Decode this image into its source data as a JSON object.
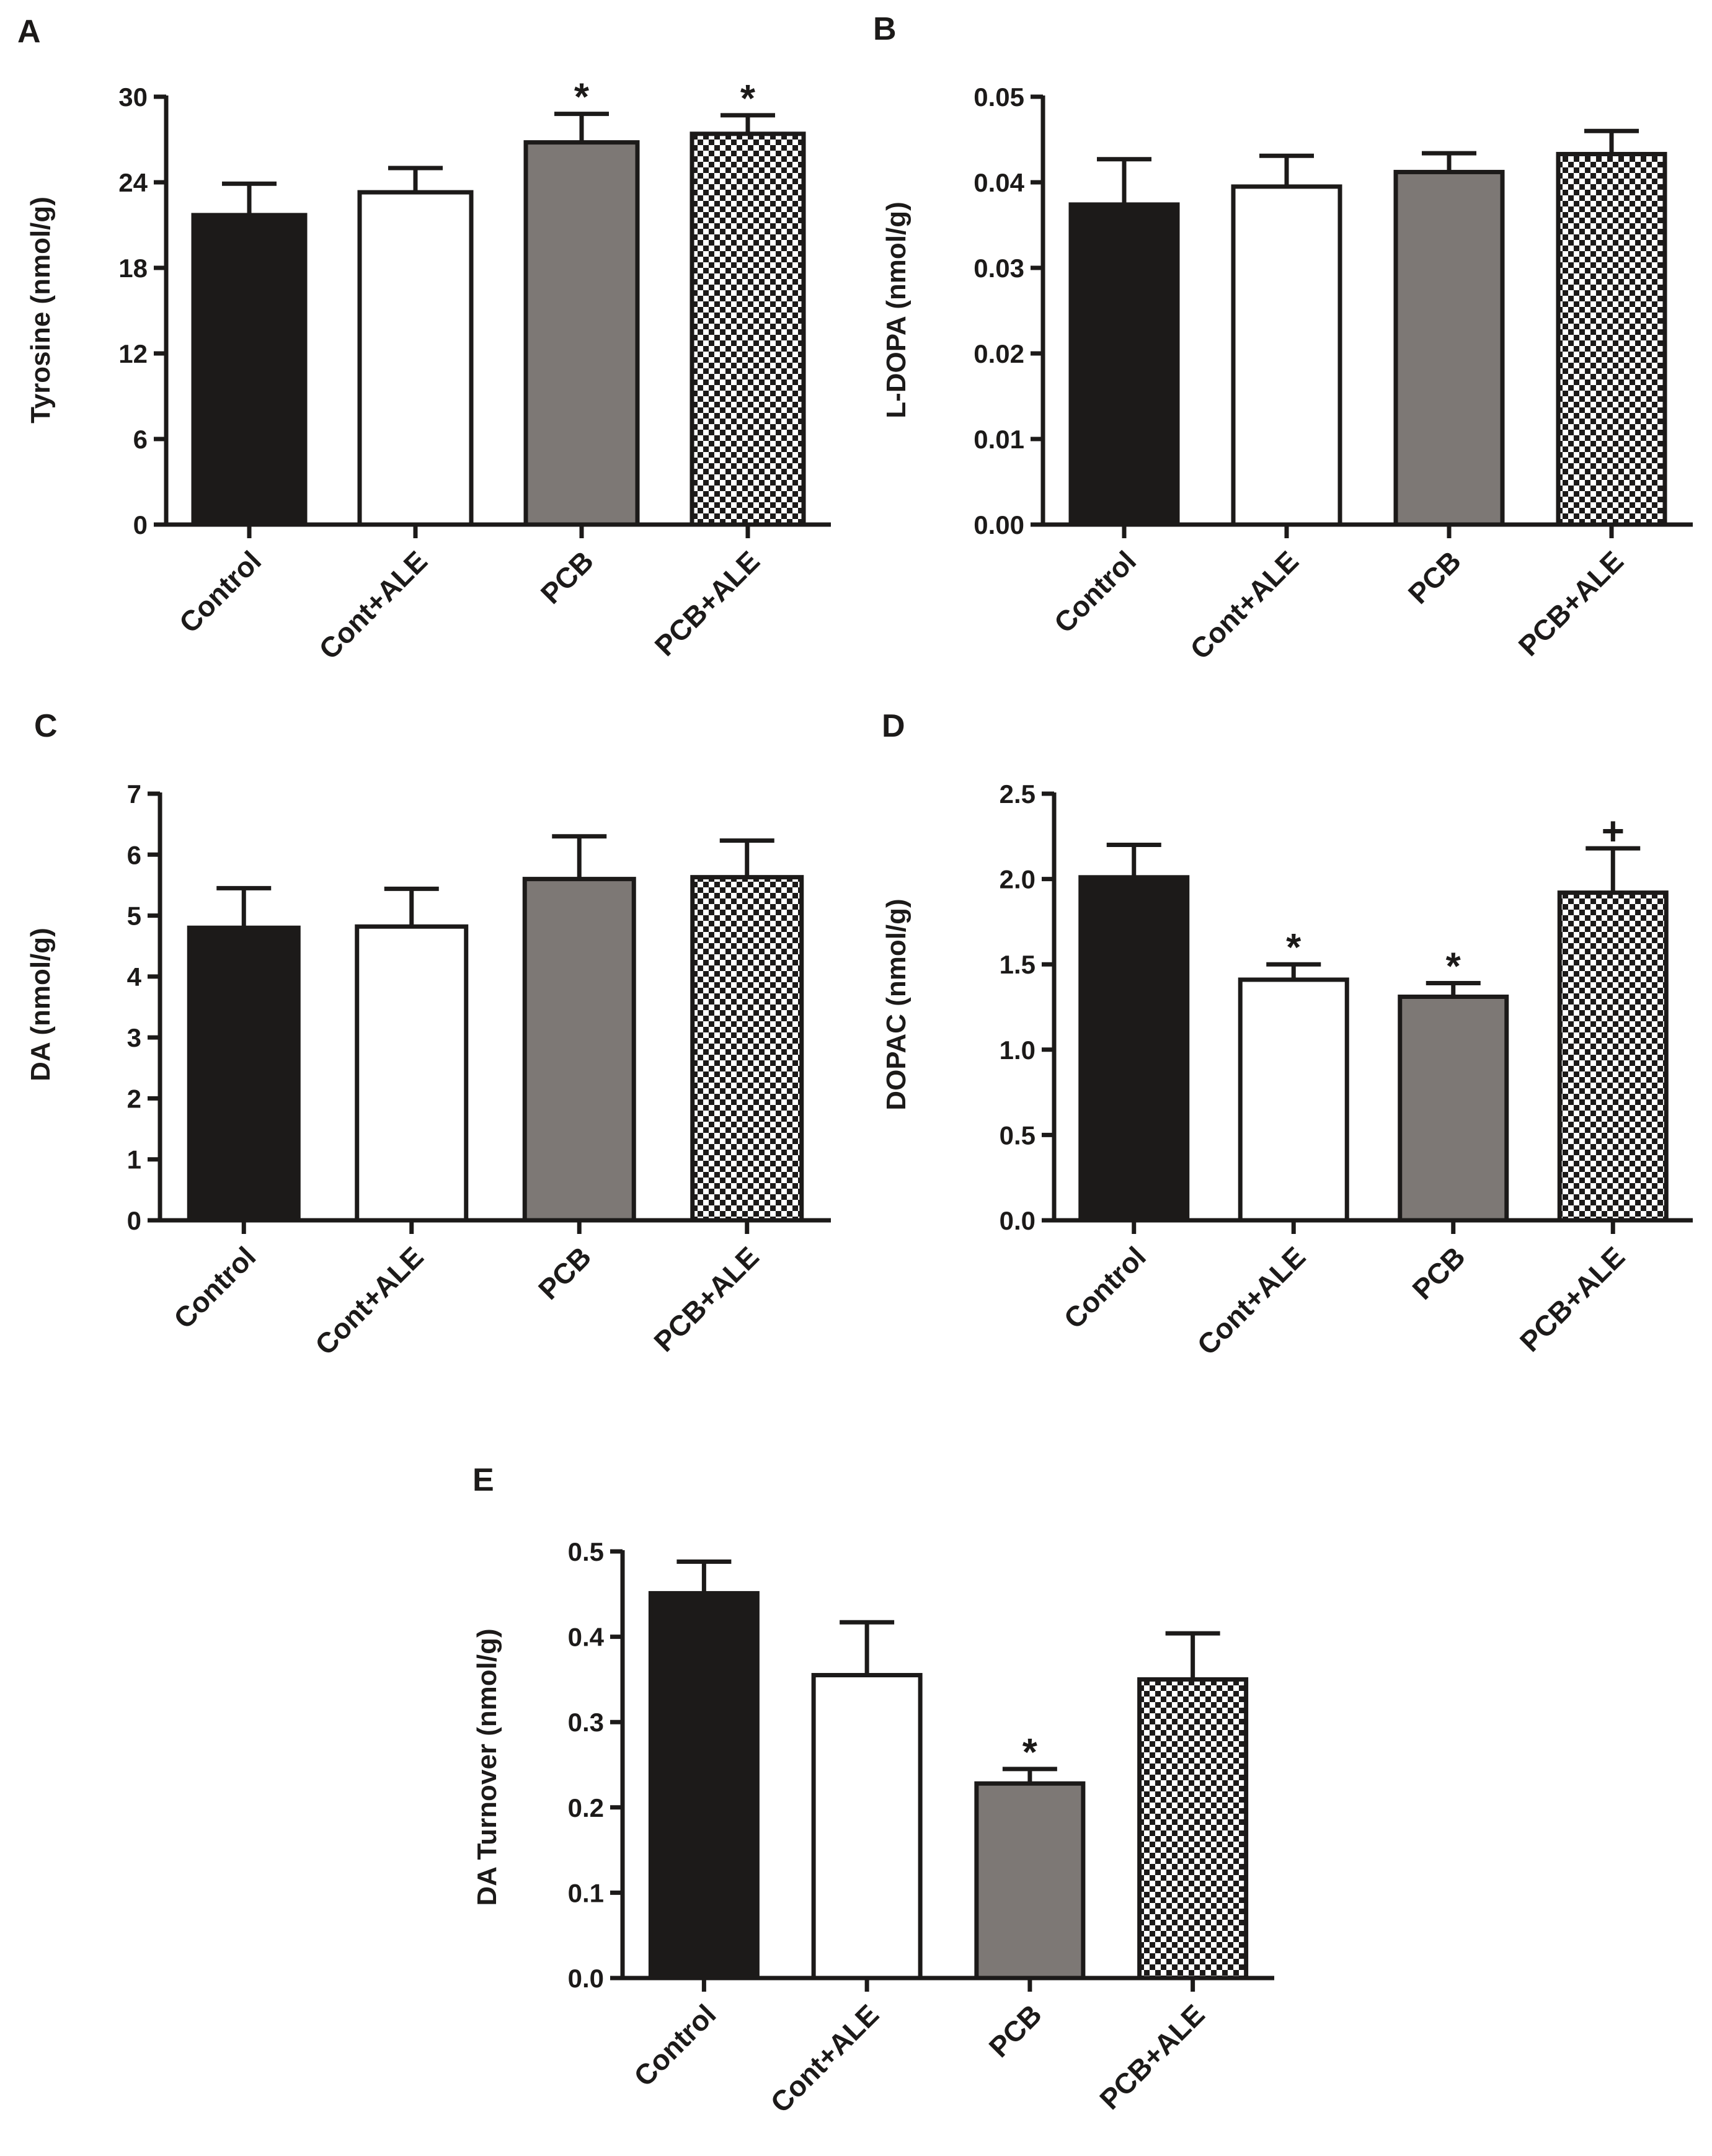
{
  "categories": [
    "Control",
    "Cont+ALE",
    "PCB",
    "PCB+ALE"
  ],
  "colors": {
    "control": "#1c1a19",
    "cont_ale": "#ffffff",
    "pcb": "#7d7875",
    "pcb_ale_check": "#1c1a19",
    "axis": "#1c1a19"
  },
  "chart_data": [
    {
      "id": "A",
      "panel_label": "A",
      "type": "bar",
      "title": "",
      "xlabel": "",
      "ylabel": "Tyrosine (nmol/g)",
      "categories": [
        "Control",
        "Cont+ALE",
        "PCB",
        "PCB+ALE"
      ],
      "values": [
        21.7,
        23.3,
        26.8,
        27.4
      ],
      "errors": [
        2.2,
        1.7,
        2.0,
        1.3
      ],
      "annotations": [
        "",
        "",
        "*",
        "*"
      ],
      "ylim": [
        0,
        30
      ],
      "yticks": [
        0,
        6,
        12,
        18,
        24,
        30
      ],
      "ytick_labels": [
        "0",
        "6",
        "12",
        "18",
        "24",
        "30"
      ]
    },
    {
      "id": "B",
      "panel_label": "B",
      "type": "bar",
      "title": "",
      "xlabel": "",
      "ylabel": "L-DOPA (nmol/g)",
      "categories": [
        "Control",
        "Cont+ALE",
        "PCB",
        "PCB+ALE"
      ],
      "values": [
        0.0374,
        0.0395,
        0.0412,
        0.0433
      ],
      "errors": [
        0.0053,
        0.0036,
        0.0022,
        0.0027
      ],
      "annotations": [
        "",
        "",
        "",
        ""
      ],
      "ylim": [
        0,
        0.05
      ],
      "yticks": [
        0,
        0.01,
        0.02,
        0.03,
        0.04,
        0.05
      ],
      "ytick_labels": [
        "0.00",
        "0.01",
        "0.02",
        "0.03",
        "0.04",
        "0.05"
      ]
    },
    {
      "id": "C",
      "panel_label": "C",
      "type": "bar",
      "title": "",
      "xlabel": "",
      "ylabel": "DA (nmol/g)",
      "categories": [
        "Control",
        "Cont+ALE",
        "PCB",
        "PCB+ALE"
      ],
      "values": [
        4.8,
        4.82,
        5.6,
        5.63
      ],
      "errors": [
        0.65,
        0.62,
        0.7,
        0.6
      ],
      "annotations": [
        "",
        "",
        "",
        ""
      ],
      "ylim": [
        0,
        7
      ],
      "yticks": [
        0,
        1,
        2,
        3,
        4,
        5,
        6,
        7
      ],
      "ytick_labels": [
        "0",
        "1",
        "2",
        "3",
        "4",
        "5",
        "6",
        "7"
      ]
    },
    {
      "id": "D",
      "panel_label": "D",
      "type": "bar",
      "title": "",
      "xlabel": "",
      "ylabel": "DOPAC (nmol/g)",
      "categories": [
        "Control",
        "Cont+ALE",
        "PCB",
        "PCB+ALE"
      ],
      "values": [
        2.01,
        1.41,
        1.31,
        1.92
      ],
      "errors": [
        0.19,
        0.09,
        0.08,
        0.26
      ],
      "annotations": [
        "",
        "*",
        "*",
        "+"
      ],
      "ylim": [
        0,
        2.5
      ],
      "yticks": [
        0,
        0.5,
        1.0,
        1.5,
        2.0,
        2.5
      ],
      "ytick_labels": [
        "0.0",
        "0.5",
        "1.0",
        "1.5",
        "2.0",
        "2.5"
      ]
    },
    {
      "id": "E",
      "panel_label": "E",
      "type": "bar",
      "title": "",
      "xlabel": "",
      "ylabel": "DA Turnover (nmol/g)",
      "categories": [
        "Control",
        "Cont+ALE",
        "PCB",
        "PCB+ALE"
      ],
      "values": [
        0.451,
        0.355,
        0.228,
        0.35
      ],
      "errors": [
        0.037,
        0.062,
        0.017,
        0.054
      ],
      "annotations": [
        "",
        "",
        "*",
        ""
      ],
      "ylim": [
        0,
        0.5
      ],
      "yticks": [
        0,
        0.1,
        0.2,
        0.3,
        0.4,
        0.5
      ],
      "ytick_labels": [
        "0.0",
        "0.1",
        "0.2",
        "0.3",
        "0.4",
        "0.5"
      ]
    }
  ]
}
